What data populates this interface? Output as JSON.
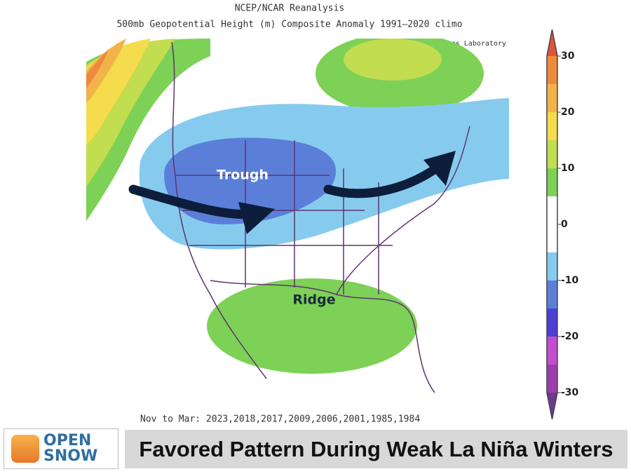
{
  "header": {
    "title": "NCEP/NCAR Reanalysis",
    "subtitle": "500mb Geopotential Height (m) Composite Anomaly 1991–2020 climo",
    "credit": "NOAA Physical Sciences Laboratory"
  },
  "map": {
    "labels": [
      "Trough",
      "Ridge"
    ],
    "footer": "Nov to Mar: 2023,2018,2017,2009,2006,2001,1985,1984"
  },
  "colorbar": {
    "ticks": [
      30,
      20,
      10,
      0,
      -10,
      -20,
      -30
    ],
    "colors": [
      "#9b3fae",
      "#c24bd0",
      "#4b3fd6",
      "#5b7fd9",
      "#86cbee",
      "#ffffff",
      "#ffffff",
      "#7dd156",
      "#c2dd4f",
      "#f4dc4c",
      "#f3b34a",
      "#ee8a3e"
    ],
    "over_color": "#e0533a",
    "under_color": "#6c3a8e"
  },
  "logo": {
    "line1": "OPEN",
    "line2": "SNOW"
  },
  "banner": "Favored Pattern During Weak La Niña Winters"
}
